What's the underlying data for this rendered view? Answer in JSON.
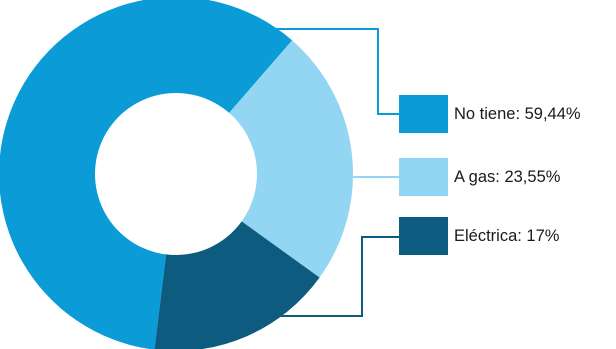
{
  "chart_data": {
    "type": "donut",
    "slices": [
      {
        "name": "No tiene",
        "value": 59.44,
        "label": "No tiene: 59,44%",
        "color": "#0b9bd6"
      },
      {
        "name": "A gas",
        "value": 23.55,
        "label": "A gas: 23,55%",
        "color": "#93d6f4"
      },
      {
        "name": "Eléctrica",
        "value": 17,
        "label": "Eléctrica: 17%",
        "color": "#0d5b7e"
      }
    ],
    "legend_position": "right",
    "start": "bottom-left, clockwise"
  }
}
